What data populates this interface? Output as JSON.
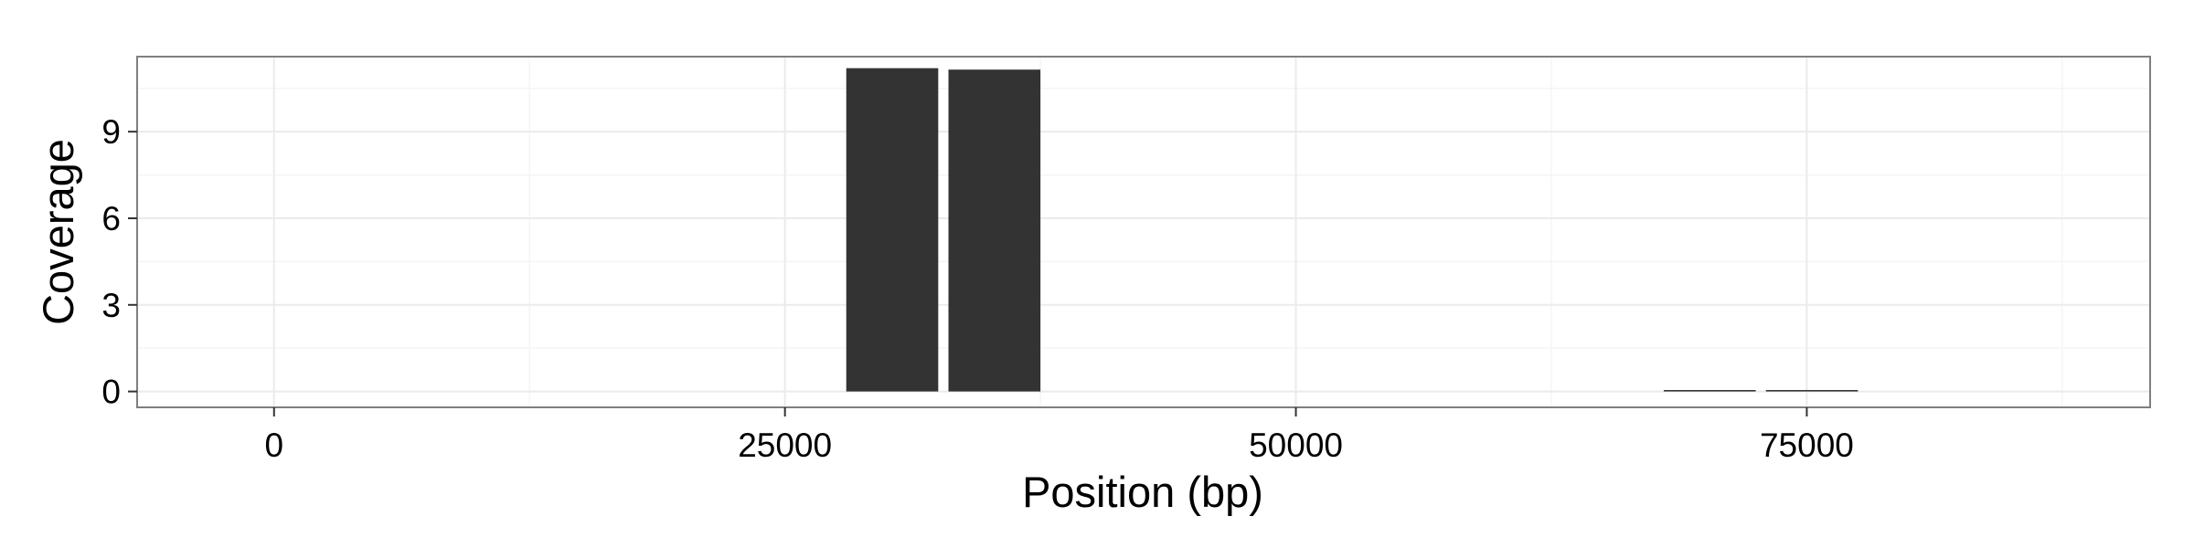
{
  "chart_data": {
    "type": "bar",
    "title": "",
    "xlabel": "Position (bp)",
    "ylabel": "Coverage",
    "x_ticks": [
      0,
      25000,
      50000,
      75000
    ],
    "y_ticks": [
      0,
      3,
      6,
      9
    ],
    "xlim": [
      -6700,
      91800
    ],
    "ylim": [
      -0.55,
      11.6
    ],
    "grid": true,
    "legend": "none",
    "bar_width": 4500,
    "bar_gap": 500,
    "x": [
      30250,
      35250,
      70250,
      75250
    ],
    "values": [
      11.2,
      11.15,
      0.05,
      0.05
    ],
    "colors": {
      "bar": "#333333",
      "panel_border": "#7f7f7f",
      "grid_major": "#ebebeb",
      "grid_minor": "#f5f5f5",
      "background": "#ffffff"
    }
  }
}
